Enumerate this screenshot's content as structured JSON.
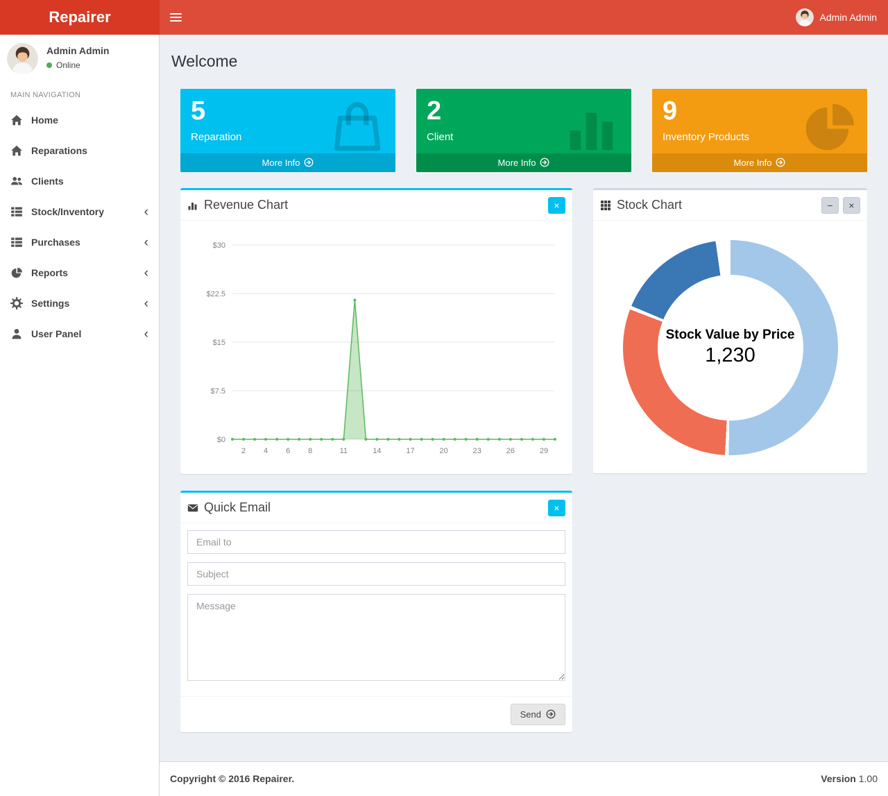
{
  "navbar": {
    "brand": "Repairer",
    "user_name": "Admin Admin"
  },
  "sidebar": {
    "user_name": "Admin Admin",
    "user_status": "Online",
    "status_color": "#4caf50",
    "nav_header": "MAIN NAVIGATION",
    "chevron_glyph": "‹",
    "items": [
      {
        "label": "Home",
        "icon": "home-icon",
        "expandable": false
      },
      {
        "label": "Reparations",
        "icon": "home-icon",
        "expandable": false
      },
      {
        "label": "Clients",
        "icon": "users-icon",
        "expandable": false
      },
      {
        "label": "Stock/Inventory",
        "icon": "th-list-icon",
        "expandable": true
      },
      {
        "label": "Purchases",
        "icon": "th-list-icon",
        "expandable": true
      },
      {
        "label": "Reports",
        "icon": "pie-chart-icon",
        "expandable": true
      },
      {
        "label": "Settings",
        "icon": "gear-icon",
        "expandable": true
      },
      {
        "label": "User Panel",
        "icon": "user-icon",
        "expandable": true
      }
    ]
  },
  "content": {
    "page_title": "Welcome",
    "info_boxes": [
      {
        "value": "5",
        "label": "Reparation",
        "more_label": "More Info",
        "color": "#00c0ef",
        "footer_color": "#00a7d0",
        "icon": "shopping-bag-icon"
      },
      {
        "value": "2",
        "label": "Client",
        "more_label": "More Info",
        "color": "#00a65a",
        "footer_color": "#008d4c",
        "icon": "bar-chart-icon"
      },
      {
        "value": "9",
        "label": "Inventory Products",
        "more_label": "More Info",
        "color": "#f39c12",
        "footer_color": "#db8b0b",
        "icon": "pie-chart-icon"
      }
    ],
    "revenue_panel": {
      "title": "Revenue Chart",
      "close_label": "×"
    },
    "stock_panel": {
      "title": "Stock Chart",
      "collapse_label": "−",
      "close_label": "×",
      "center_title": "Stock Value by Price",
      "center_value": "1,230"
    },
    "email_panel": {
      "title": "Quick Email",
      "close_label": "×",
      "email_placeholder": "Email to",
      "subject_placeholder": "Subject",
      "message_placeholder": "Message",
      "send_label": "Send"
    }
  },
  "footer": {
    "copyright": "Copyright © 2016 Repairer.",
    "version_label": "Version",
    "version_value": "1.00"
  },
  "chart_data": [
    {
      "type": "area",
      "title": "Revenue Chart",
      "x": [
        1,
        2,
        3,
        4,
        5,
        6,
        7,
        8,
        9,
        10,
        11,
        12,
        13,
        14,
        15,
        16,
        17,
        18,
        19,
        20,
        21,
        22,
        23,
        24,
        25,
        26,
        27,
        28,
        29,
        30
      ],
      "y": [
        0,
        0,
        0,
        0,
        0,
        0,
        0,
        0,
        0,
        0,
        0,
        21.5,
        0,
        0,
        0,
        0,
        0,
        0,
        0,
        0,
        0,
        0,
        0,
        0,
        0,
        0,
        0,
        0,
        0,
        0
      ],
      "x_ticks": [
        2,
        4,
        6,
        8,
        11,
        14,
        17,
        20,
        23,
        26,
        29
      ],
      "y_ticks": [
        {
          "label": "$0",
          "value": 0
        },
        {
          "label": "$7.5",
          "value": 7.5
        },
        {
          "label": "$15",
          "value": 15
        },
        {
          "label": "$22.5",
          "value": 22.5
        },
        {
          "label": "$30",
          "value": 30
        }
      ],
      "ylim": [
        0,
        30
      ],
      "grid": true,
      "legend_position": "none",
      "line_color": "#5cb85c",
      "fill_color": "rgba(92,184,92,0.35)"
    },
    {
      "type": "pie",
      "title": "Stock Chart",
      "center_title": "Stock Value by Price",
      "center_total": "1,230",
      "legend_position": "none",
      "segments": [
        {
          "name": "segment-light-blue",
          "color": "#a3c7e8",
          "percent": 52
        },
        {
          "name": "segment-salmon",
          "color": "#ef6d53",
          "percent": 31
        },
        {
          "name": "segment-dark-blue",
          "color": "#3a77b5",
          "percent": 17
        }
      ]
    }
  ]
}
